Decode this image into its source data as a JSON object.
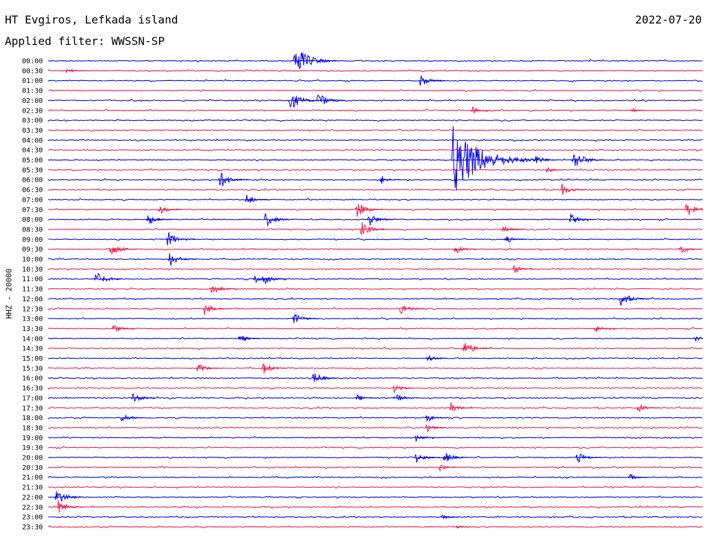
{
  "header": {
    "station": "HT Evgiros, Lefkada island",
    "filter": "Applied filter: WWSSN-SP",
    "date": "2022-07-20"
  },
  "channel_label": "HHZ - 20000",
  "colors": {
    "trace_a": "#0000e6",
    "trace_b": "#f0174a"
  },
  "chart_data": {
    "type": "line",
    "title": "HT Evgiros, Lefkada island",
    "subtitle": "Applied filter: WWSSN-SP",
    "ylabel": "HHZ - 20000",
    "categories": [
      "00:00",
      "00:30",
      "01:00",
      "01:30",
      "02:00",
      "02:30",
      "03:00",
      "03:30",
      "04:00",
      "04:30",
      "05:00",
      "05:30",
      "06:00",
      "06:30",
      "07:00",
      "07:30",
      "08:00",
      "08:30",
      "09:00",
      "09:30",
      "10:00",
      "10:30",
      "11:00",
      "11:30",
      "12:00",
      "12:30",
      "13:00",
      "13:30",
      "14:00",
      "14:30",
      "15:00",
      "15:30",
      "16:00",
      "16:30",
      "17:00",
      "17:30",
      "18:00",
      "18:30",
      "19:00",
      "19:30",
      "20:00",
      "20:30",
      "21:00",
      "21:30",
      "22:00",
      "22:30",
      "23:00",
      "23:30"
    ],
    "row_minutes": 30,
    "trace_colors_alternate": [
      "#0000e6",
      "#f0174a"
    ],
    "events": [
      {
        "row": 0,
        "minute": 11.2,
        "amplitude": 2.4
      },
      {
        "row": 1,
        "minute": 0.8,
        "amplitude": 0.6
      },
      {
        "row": 2,
        "minute": 17.0,
        "amplitude": 1.1
      },
      {
        "row": 4,
        "minute": 11.0,
        "amplitude": 1.6
      },
      {
        "row": 4,
        "minute": 12.3,
        "amplitude": 1.3
      },
      {
        "row": 5,
        "minute": 26.7,
        "amplitude": 0.5
      },
      {
        "row": 5,
        "minute": 19.4,
        "amplitude": 0.6
      },
      {
        "row": 10,
        "minute": 18.5,
        "amplitude": 5.0
      },
      {
        "row": 10,
        "minute": 24.0,
        "amplitude": 1.6
      },
      {
        "row": 10,
        "minute": 22.3,
        "amplitude": 0.9
      },
      {
        "row": 11,
        "minute": 22.8,
        "amplitude": 0.6
      },
      {
        "row": 12,
        "minute": 7.8,
        "amplitude": 1.4
      },
      {
        "row": 12,
        "minute": 15.2,
        "amplitude": 0.8
      },
      {
        "row": 13,
        "minute": 23.5,
        "amplitude": 1.0
      },
      {
        "row": 14,
        "minute": 9.0,
        "amplitude": 1.0
      },
      {
        "row": 15,
        "minute": 5.0,
        "amplitude": 1.0
      },
      {
        "row": 15,
        "minute": 14.1,
        "amplitude": 1.2
      },
      {
        "row": 15,
        "minute": 29.2,
        "amplitude": 1.2
      },
      {
        "row": 16,
        "minute": 4.5,
        "amplitude": 1.0
      },
      {
        "row": 16,
        "minute": 9.9,
        "amplitude": 1.3
      },
      {
        "row": 16,
        "minute": 14.6,
        "amplitude": 1.2
      },
      {
        "row": 16,
        "minute": 23.9,
        "amplitude": 1.0
      },
      {
        "row": 17,
        "minute": 14.3,
        "amplitude": 1.2
      },
      {
        "row": 17,
        "minute": 20.8,
        "amplitude": 0.9
      },
      {
        "row": 18,
        "minute": 5.4,
        "amplitude": 1.3
      },
      {
        "row": 18,
        "minute": 20.9,
        "amplitude": 0.8
      },
      {
        "row": 19,
        "minute": 2.8,
        "amplitude": 1.2
      },
      {
        "row": 19,
        "minute": 18.6,
        "amplitude": 0.9
      },
      {
        "row": 19,
        "minute": 28.9,
        "amplitude": 0.9
      },
      {
        "row": 20,
        "minute": 5.5,
        "amplitude": 1.2
      },
      {
        "row": 21,
        "minute": 21.3,
        "amplitude": 0.8
      },
      {
        "row": 22,
        "minute": 2.1,
        "amplitude": 1.3
      },
      {
        "row": 22,
        "minute": 9.4,
        "amplitude": 0.8
      },
      {
        "row": 22,
        "minute": 9.8,
        "amplitude": 1.0
      },
      {
        "row": 23,
        "minute": 7.4,
        "amplitude": 1.1
      },
      {
        "row": 24,
        "minute": 26.2,
        "amplitude": 1.3
      },
      {
        "row": 25,
        "minute": 7.1,
        "amplitude": 1.0
      },
      {
        "row": 25,
        "minute": 16.1,
        "amplitude": 1.1
      },
      {
        "row": 26,
        "minute": 11.2,
        "amplitude": 1.0
      },
      {
        "row": 27,
        "minute": 2.9,
        "amplitude": 0.9
      },
      {
        "row": 27,
        "minute": 25.0,
        "amplitude": 0.8
      },
      {
        "row": 28,
        "minute": 8.7,
        "amplitude": 0.8
      },
      {
        "row": 28,
        "minute": 29.6,
        "amplitude": 0.6
      },
      {
        "row": 29,
        "minute": 19.0,
        "amplitude": 1.3
      },
      {
        "row": 30,
        "minute": 17.3,
        "amplitude": 0.8
      },
      {
        "row": 31,
        "minute": 6.8,
        "amplitude": 0.9
      },
      {
        "row": 31,
        "minute": 9.8,
        "amplitude": 1.0
      },
      {
        "row": 32,
        "minute": 12.1,
        "amplitude": 1.1
      },
      {
        "row": 33,
        "minute": 15.8,
        "amplitude": 0.8
      },
      {
        "row": 34,
        "minute": 3.8,
        "amplitude": 1.0
      },
      {
        "row": 34,
        "minute": 15.8,
        "amplitude": 1.0
      },
      {
        "row": 34,
        "minute": 14.1,
        "amplitude": 0.7
      },
      {
        "row": 35,
        "minute": 18.4,
        "amplitude": 0.9
      },
      {
        "row": 35,
        "minute": 27.0,
        "amplitude": 0.9
      },
      {
        "row": 36,
        "minute": 3.3,
        "amplitude": 0.9
      },
      {
        "row": 36,
        "minute": 17.3,
        "amplitude": 0.8
      },
      {
        "row": 37,
        "minute": 17.3,
        "amplitude": 0.8
      },
      {
        "row": 38,
        "minute": 16.8,
        "amplitude": 0.7
      },
      {
        "row": 40,
        "minute": 16.8,
        "amplitude": 1.0
      },
      {
        "row": 40,
        "minute": 24.2,
        "amplitude": 1.0
      },
      {
        "row": 40,
        "minute": 18.1,
        "amplitude": 1.0
      },
      {
        "row": 41,
        "minute": 17.9,
        "amplitude": 0.6
      },
      {
        "row": 42,
        "minute": 26.6,
        "amplitude": 0.6
      },
      {
        "row": 44,
        "minute": 0.3,
        "amplitude": 1.3
      },
      {
        "row": 45,
        "minute": 0.4,
        "amplitude": 1.1
      },
      {
        "row": 46,
        "minute": 18.0,
        "amplitude": 0.6
      },
      {
        "row": 47,
        "minute": 18.7,
        "amplitude": 0.3
      }
    ]
  }
}
